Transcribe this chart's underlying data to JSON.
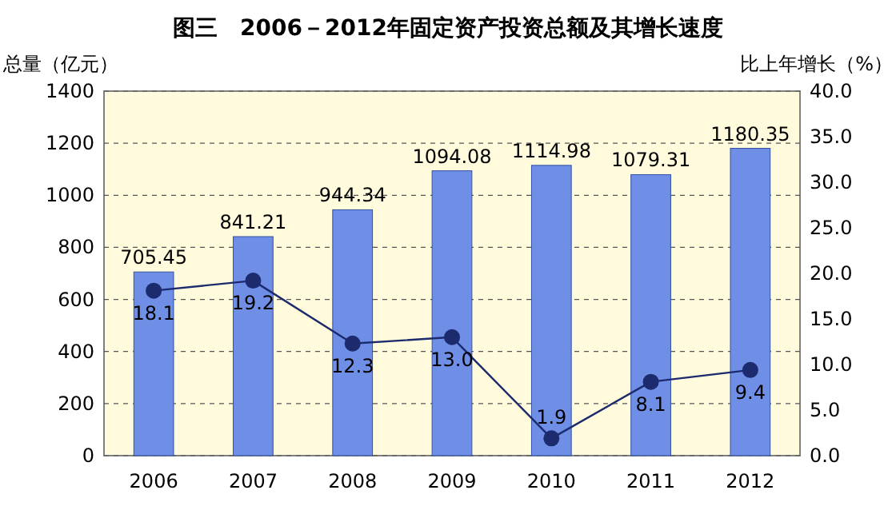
{
  "chart_data": {
    "type": "bar",
    "title": "图三　2006－2012年固定资产投资总额及其增长速度",
    "ylabel": "总量（亿元）",
    "y2label": "比上年增长（%）",
    "categories": [
      "2006",
      "2007",
      "2008",
      "2009",
      "2010",
      "2011",
      "2012"
    ],
    "series": [
      {
        "color": "#6f8ee6",
        "values": [
          705.45,
          841.21,
          944.34,
          1094.08,
          1114.98,
          1079.31,
          1180.35
        ],
        "value_labels": [
          "705.45",
          "841.21",
          "944.34",
          "1094.08",
          "1114.98",
          "1079.31",
          "1180.35"
        ]
      },
      {
        "type": "line",
        "axis": "y2",
        "color": "#1c2a6e",
        "marker": "circle",
        "values": [
          18.1,
          19.2,
          12.3,
          13.0,
          1.9,
          8.1,
          9.4
        ],
        "value_labels": [
          "18.1",
          "19.2",
          "12.3",
          "13.0",
          "1.9",
          "8.1",
          "9.4"
        ]
      }
    ],
    "ylim": [
      0,
      1400
    ],
    "yticks": [
      0,
      200,
      400,
      600,
      800,
      1000,
      1200,
      1400
    ],
    "y2lim": [
      0,
      40
    ],
    "y2ticks": [
      {
        "value": 0,
        "label": "0.0"
      },
      {
        "value": 5,
        "label": "5.0"
      },
      {
        "value": 10,
        "label": "10.0"
      },
      {
        "value": 15,
        "label": "15.0"
      },
      {
        "value": 20,
        "label": "20.0"
      },
      {
        "value": 25,
        "label": "25.0"
      },
      {
        "value": 30,
        "label": "30.0"
      },
      {
        "value": 35,
        "label": "35.0"
      },
      {
        "value": 40,
        "label": "40.0"
      }
    ],
    "grid": "y"
  }
}
